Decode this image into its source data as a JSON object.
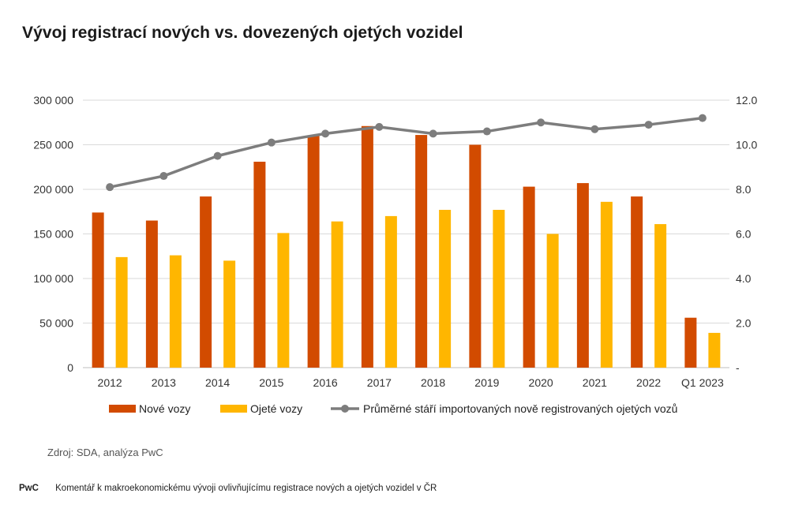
{
  "title": "Vývoj registrací nových vs. dovezených ojetých vozidel",
  "source": "Zdroj: SDA, analýza PwC",
  "footer": {
    "brand": "PwC",
    "text": "Komentář k makroekonomickému vývoji ovlivňujícímu registrace nových a ojetých vozidel v ČR"
  },
  "colors": {
    "new_cars": "#d24b00",
    "used_cars": "#ffb600",
    "avg_age_line": "#7d7d7d",
    "grid": "#d9d9d9"
  },
  "chart_data": {
    "type": "bar",
    "categories": [
      "2012",
      "2013",
      "2014",
      "2015",
      "2016",
      "2017",
      "2018",
      "2019",
      "2020",
      "2021",
      "2022",
      "Q1 2023"
    ],
    "series": [
      {
        "name": "Nové vozy",
        "axis": "left",
        "values": [
          174000,
          165000,
          192000,
          231000,
          260000,
          271000,
          261000,
          250000,
          203000,
          207000,
          192000,
          56000
        ]
      },
      {
        "name": "Ojeté vozy",
        "axis": "left",
        "values": [
          124000,
          126000,
          120000,
          151000,
          164000,
          170000,
          177000,
          177000,
          150000,
          186000,
          161000,
          39000
        ]
      },
      {
        "name": "Průměrné stáří importovaných nově registrovaných ojetých vozů",
        "type": "line",
        "axis": "right",
        "values": [
          8.1,
          8.6,
          9.5,
          10.1,
          10.5,
          10.8,
          10.5,
          10.6,
          11.0,
          10.7,
          10.9,
          11.2
        ]
      }
    ],
    "y_left": {
      "min": 0,
      "max": 300000,
      "ticks": [
        "0",
        "50 000",
        "100 000",
        "150 000",
        "200 000",
        "250 000",
        "300 000"
      ]
    },
    "y_right": {
      "min": 0,
      "max": 12,
      "ticks": [
        "-",
        "2.0",
        "4.0",
        "6.0",
        "8.0",
        "10.0",
        "12.0"
      ]
    },
    "grid": true,
    "legend_position": "bottom"
  }
}
